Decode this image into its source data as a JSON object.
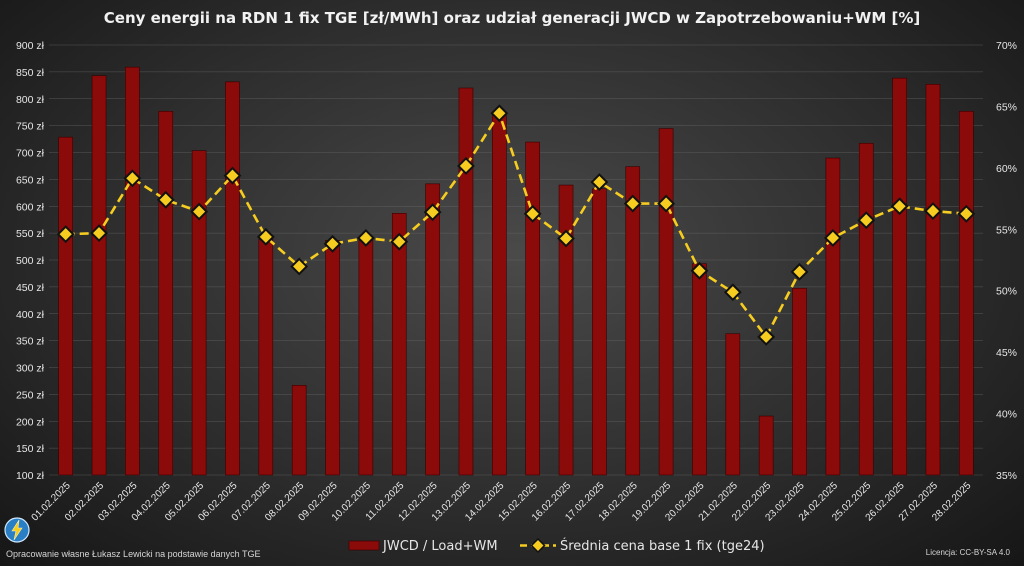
{
  "chart_data": {
    "type": "bar+line",
    "title": "Ceny energii na RDN 1 fix TGE [zł/MWh] oraz udział generacji JWCD w Zapotrzebowaniu+WM [%]",
    "categories": [
      "01.02.2025",
      "02.02.2025",
      "03.02.2025",
      "04.02.2025",
      "05.02.2025",
      "06.02.2025",
      "07.02.2025",
      "08.02.2025",
      "09.02.2025",
      "10.02.2025",
      "11.02.2025",
      "12.02.2025",
      "13.02.2025",
      "14.02.2025",
      "15.02.2025",
      "16.02.2025",
      "17.02.2025",
      "18.02.2025",
      "19.02.2025",
      "20.02.2025",
      "21.02.2025",
      "22.02.2025",
      "23.02.2025",
      "24.02.2025",
      "25.02.2025",
      "26.02.2025",
      "27.02.2025",
      "28.02.2025"
    ],
    "left_axis": {
      "ylim": [
        100,
        900
      ],
      "ticks": [
        "100 zł",
        "150 zł",
        "200 zł",
        "250 zł",
        "300 zł",
        "350 zł",
        "400 zł",
        "450 zł",
        "500 zł",
        "550 zł",
        "600 zł",
        "650 zł",
        "700 zł",
        "750 zł",
        "800 zł",
        "850 zł",
        "900 zł"
      ]
    },
    "right_axis": {
      "ylim": [
        35,
        70
      ],
      "ticks": [
        "35%",
        "40%",
        "45%",
        "50%",
        "55%",
        "60%",
        "65%",
        "70%"
      ]
    },
    "series": [
      {
        "name": "JWCD / Load+WM",
        "type": "bar",
        "axis": "right",
        "color": "#8b0a0a",
        "values": [
          62.5,
          67.5,
          68.2,
          64.6,
          61.4,
          67.0,
          54.2,
          42.3,
          54.1,
          54.1,
          56.3,
          58.7,
          66.5,
          64.5,
          62.1,
          58.6,
          58.3,
          60.1,
          63.2,
          52.2,
          46.5,
          39.8,
          50.2,
          60.8,
          62.0,
          67.3,
          66.8,
          64.6
        ]
      },
      {
        "name": "Średnia cena base 1 fix (tge24)",
        "type": "line",
        "axis": "left",
        "color": "#f5cc1f",
        "values": [
          548,
          550,
          652,
          612,
          590,
          657,
          543,
          488,
          530,
          541,
          534,
          589,
          675,
          773,
          586,
          540,
          645,
          605,
          605,
          480,
          440,
          357,
          478,
          541,
          574,
          600,
          591,
          586
        ]
      }
    ],
    "legend_position": "bottom-center",
    "grid": true
  },
  "footer": {
    "credit": "Opracowanie własne Łukasz Lewicki na podstawie danych TGE",
    "license": "Licencja: CC-BY-SA 4.0"
  },
  "logo_icon": "lightning-bolt-icon"
}
